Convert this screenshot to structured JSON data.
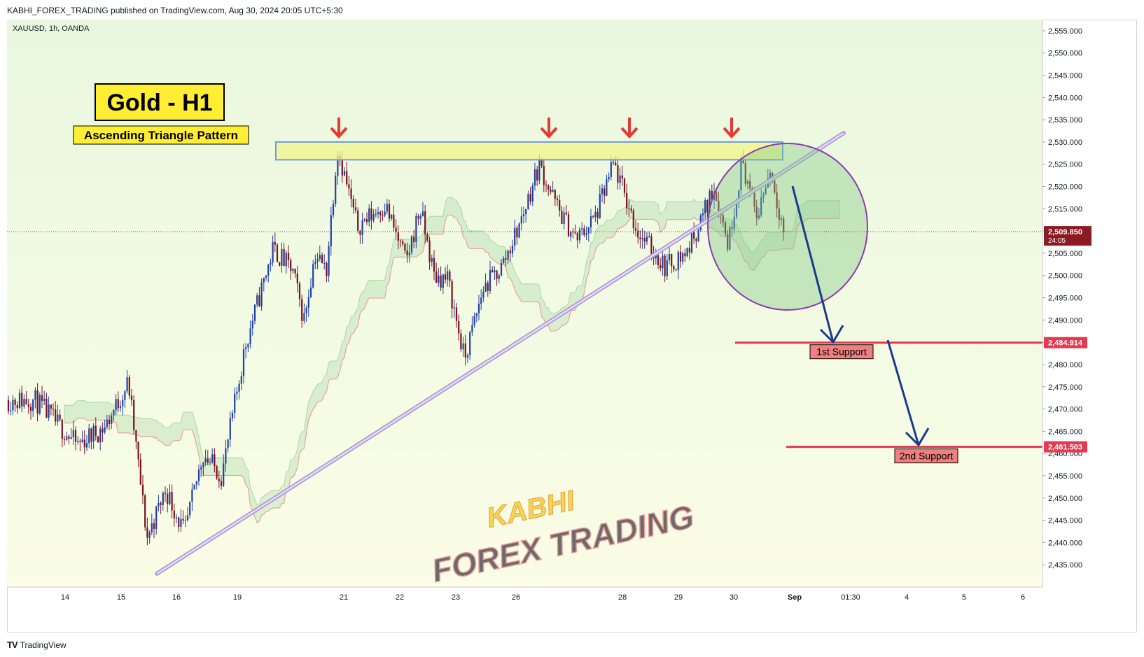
{
  "header": {
    "publisher": "KABHI_FOREX_TRADING published on TradingView.com, Aug 30, 2024 20:05 UTC+5:30"
  },
  "symbol_info": "XAUUSD, 1h, OANDA",
  "footer": {
    "logo": "TradingView"
  },
  "annotations": {
    "title": "Gold - H1",
    "subtitle": "Ascending Triangle Pattern",
    "support1_label": "1st Support",
    "support2_label": "2nd Support",
    "watermark_line1": "KABHI",
    "watermark_line2": "FOREX TRADING"
  },
  "colors": {
    "up": "#1e3fa8",
    "down": "#7a1020",
    "support_line": "#e53950",
    "trendline": "#b39ddb",
    "resistance_zone": "#f0f58a",
    "circle": "#8e3bb0",
    "arrow": "#1a3a8c",
    "marker": "#e53935"
  },
  "chart_data": {
    "type": "candlestick",
    "symbol": "XAUUSD",
    "timeframe": "1h",
    "source": "OANDA",
    "y_ticks": [
      "2,555.000",
      "2,550.000",
      "2,545.000",
      "2,540.000",
      "2,535.000",
      "2,530.000",
      "2,525.000",
      "2,520.000",
      "2,515.000",
      "2,510.000",
      "2,505.000",
      "2,500.000",
      "2,495.000",
      "2,490.000",
      "2,485.000",
      "2,480.000",
      "2,475.000",
      "2,470.000",
      "2,465.000",
      "2,460.000",
      "2,455.000",
      "2,450.000",
      "2,445.000",
      "2,440.000",
      "2,435.000"
    ],
    "ylim": [
      2430,
      2557.5
    ],
    "x_ticks": [
      "14",
      "15",
      "16",
      "19",
      "21",
      "22",
      "23",
      "26",
      "28",
      "29",
      "30",
      "Sep",
      "01:30",
      "4",
      "5",
      "6"
    ],
    "current_price": "2,509.850",
    "countdown": "24:05",
    "support_levels": [
      {
        "name": "1st Support",
        "price_label": "2,484.914",
        "value": 2484.914
      },
      {
        "name": "2nd Support",
        "price_label": "2,461.503",
        "value": 2461.503
      }
    ],
    "resistance_zone": [
      2526,
      2530
    ],
    "trendline": {
      "from": {
        "date": "Aug 14",
        "price": 2433
      },
      "to": {
        "date": "Aug 30",
        "price": 2532
      }
    },
    "close_path": [
      {
        "date": "Aug 13",
        "close": 2472
      },
      {
        "date": "Aug 14",
        "close": 2462
      },
      {
        "date": "Aug 14",
        "close": 2466
      },
      {
        "date": "Aug 15",
        "close": 2476
      },
      {
        "date": "Aug 15",
        "close": 2441
      },
      {
        "date": "Aug 15",
        "close": 2452
      },
      {
        "date": "Aug 16",
        "close": 2442
      },
      {
        "date": "Aug 16",
        "close": 2460
      },
      {
        "date": "Aug 16",
        "close": 2455
      },
      {
        "date": "Aug 19",
        "close": 2484
      },
      {
        "date": "Aug 19",
        "close": 2506
      },
      {
        "date": "Aug 20",
        "close": 2501
      },
      {
        "date": "Aug 20",
        "close": 2490
      },
      {
        "date": "Aug 20",
        "close": 2505
      },
      {
        "date": "Aug 20",
        "close": 2501
      },
      {
        "date": "Aug 20",
        "close": 2529
      },
      {
        "date": "Aug 21",
        "close": 2511
      },
      {
        "date": "Aug 21",
        "close": 2516
      },
      {
        "date": "Aug 22",
        "close": 2503
      },
      {
        "date": "Aug 22",
        "close": 2515
      },
      {
        "date": "Aug 22",
        "close": 2500
      },
      {
        "date": "Aug 22",
        "close": 2499
      },
      {
        "date": "Aug 23",
        "close": 2481
      },
      {
        "date": "Aug 23",
        "close": 2497
      },
      {
        "date": "Aug 23",
        "close": 2502
      },
      {
        "date": "Aug 26",
        "close": 2512
      },
      {
        "date": "Aug 26",
        "close": 2525
      },
      {
        "date": "Aug 26",
        "close": 2515
      },
      {
        "date": "Aug 27",
        "close": 2508
      },
      {
        "date": "Aug 27",
        "close": 2513
      },
      {
        "date": "Aug 27",
        "close": 2525
      },
      {
        "date": "Aug 28",
        "close": 2510
      },
      {
        "date": "Aug 28",
        "close": 2502
      },
      {
        "date": "Aug 29",
        "close": 2505
      },
      {
        "date": "Aug 29",
        "close": 2512
      },
      {
        "date": "Aug 29",
        "close": 2520
      },
      {
        "date": "Aug 29",
        "close": 2507
      },
      {
        "date": "Aug 30",
        "close": 2526
      },
      {
        "date": "Aug 30",
        "close": 2513
      },
      {
        "date": "Aug 30",
        "close": 2524
      },
      {
        "date": "Aug 30",
        "close": 2509.85
      }
    ]
  }
}
